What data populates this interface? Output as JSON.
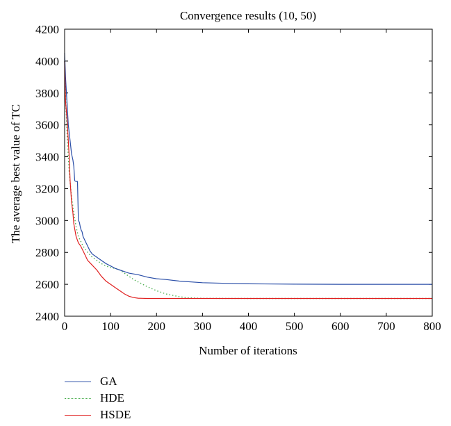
{
  "chart_data": {
    "type": "line",
    "title": "Convergence results (10, 50)",
    "xlabel": "Number of iterations",
    "ylabel": "The average best value of TC",
    "xlim": [
      0,
      800
    ],
    "ylim": [
      2400,
      4200
    ],
    "xticks": [
      0,
      100,
      200,
      300,
      400,
      500,
      600,
      700,
      800
    ],
    "yticks": [
      2400,
      2600,
      2800,
      3000,
      3200,
      3400,
      3600,
      3800,
      4000,
      4200
    ],
    "grid": false,
    "legend_position": "below-left",
    "series": [
      {
        "name": "GA",
        "color": "#2b4fa8",
        "style": "solid",
        "x": [
          0,
          2,
          4,
          6,
          8,
          10,
          12,
          15,
          18,
          20,
          22,
          25,
          28,
          30,
          32,
          34,
          36,
          38,
          40,
          45,
          50,
          55,
          60,
          70,
          80,
          90,
          100,
          110,
          120,
          130,
          140,
          150,
          160,
          180,
          200,
          220,
          250,
          300,
          350,
          400,
          500,
          600,
          700,
          800
        ],
        "y": [
          4050,
          3900,
          3800,
          3700,
          3600,
          3550,
          3500,
          3420,
          3380,
          3340,
          3250,
          3245,
          3245,
          3000,
          2990,
          2960,
          2940,
          2930,
          2900,
          2870,
          2840,
          2810,
          2790,
          2770,
          2750,
          2730,
          2715,
          2700,
          2690,
          2680,
          2670,
          2665,
          2660,
          2645,
          2635,
          2630,
          2620,
          2610,
          2606,
          2603,
          2601,
          2600,
          2600,
          2600
        ]
      },
      {
        "name": "HDE",
        "color": "#4caf50",
        "style": "dotted",
        "x": [
          0,
          3,
          6,
          10,
          15,
          20,
          25,
          30,
          40,
          50,
          60,
          70,
          80,
          90,
          100,
          110,
          120,
          130,
          140,
          150,
          160,
          170,
          180,
          200,
          220,
          250,
          270,
          300,
          400,
          500,
          600,
          700,
          800
        ],
        "y": [
          4000,
          3700,
          3500,
          3300,
          3150,
          3050,
          2960,
          2900,
          2840,
          2800,
          2770,
          2750,
          2730,
          2715,
          2705,
          2700,
          2690,
          2670,
          2650,
          2630,
          2615,
          2600,
          2585,
          2560,
          2540,
          2522,
          2515,
          2512,
          2511,
          2511,
          2511,
          2511,
          2511
        ]
      },
      {
        "name": "HSDE",
        "color": "#e02020",
        "style": "solid",
        "x": [
          0,
          2,
          4,
          6,
          8,
          10,
          12,
          15,
          18,
          20,
          25,
          30,
          35,
          40,
          45,
          50,
          60,
          70,
          80,
          90,
          100,
          110,
          120,
          130,
          140,
          150,
          160,
          170,
          180,
          200,
          250,
          300,
          400,
          500,
          600,
          700,
          800
        ],
        "y": [
          4000,
          3750,
          3680,
          3600,
          3500,
          3400,
          3250,
          3120,
          3050,
          2980,
          2900,
          2860,
          2840,
          2810,
          2780,
          2750,
          2720,
          2690,
          2650,
          2620,
          2600,
          2580,
          2560,
          2540,
          2525,
          2517,
          2513,
          2512,
          2511,
          2511,
          2511,
          2511,
          2511,
          2511,
          2511,
          2511,
          2511
        ]
      }
    ]
  }
}
